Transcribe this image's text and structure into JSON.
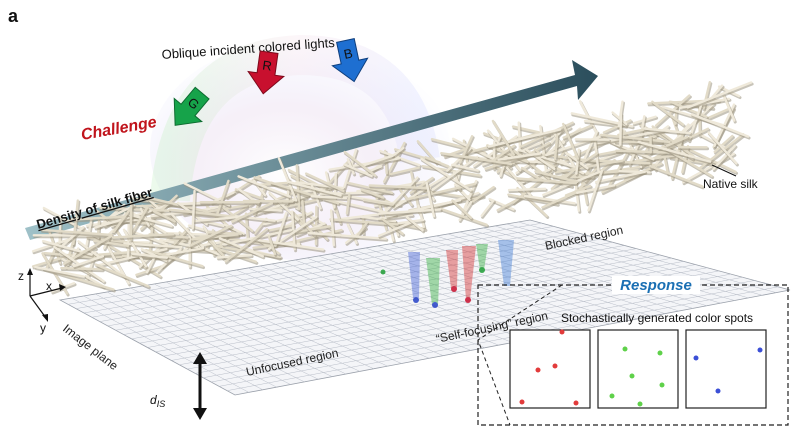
{
  "panel_label": "a",
  "top_caption": "Oblique incident colored lights",
  "lights": [
    {
      "letter": "G",
      "color": "#16a34a"
    },
    {
      "letter": "R",
      "color": "#c8102e"
    },
    {
      "letter": "B",
      "color": "#1e6fd1"
    }
  ],
  "challenge_label": "Challenge",
  "challenge_color": "#c0141c",
  "density_label": "Density of silk fiber",
  "native_silk_label": "Native silk",
  "blocked_region_label": "Blocked region",
  "self_focusing_label": "“Self-focusing” region",
  "unfocused_region_label": "Unfocused region",
  "image_plane_label": "Image plane",
  "distance_label_main": "d",
  "distance_label_sub": "IS",
  "axes": {
    "z": "z",
    "x": "x",
    "y": "y"
  },
  "response": {
    "title": "Response",
    "title_color": "#1a6fb3",
    "caption": "Stochastically generated color spots",
    "spot_colors": [
      "#e23b3b",
      "#5fd14a",
      "#3b4fd6"
    ]
  }
}
